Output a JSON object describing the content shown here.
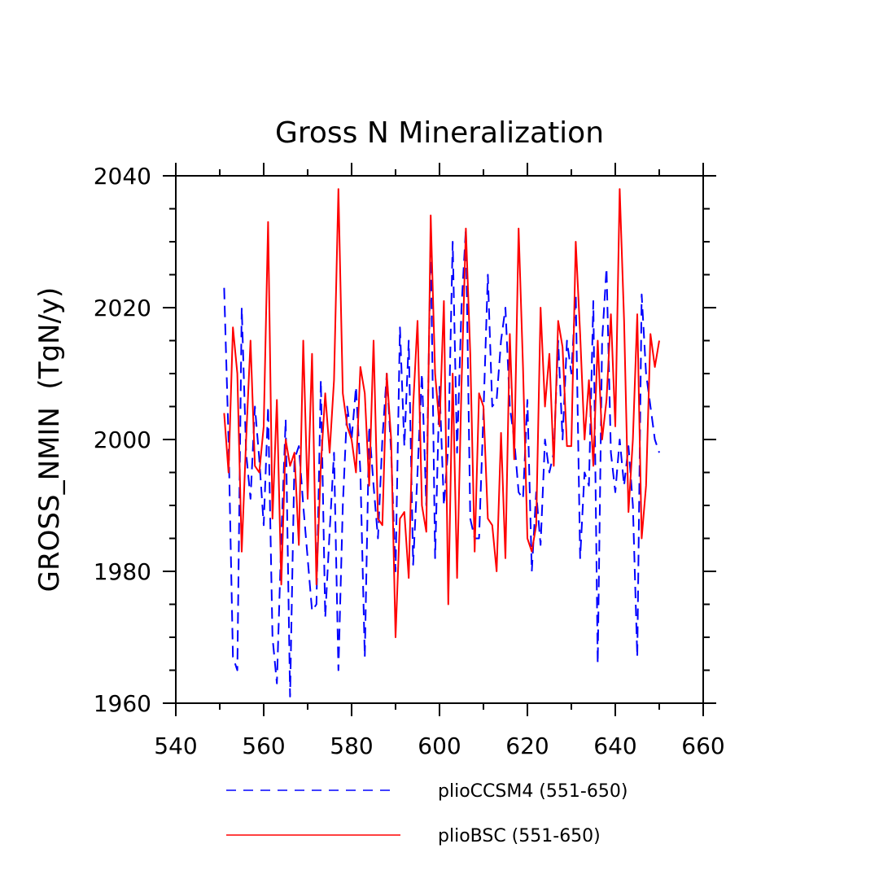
{
  "chart_data": {
    "type": "line",
    "title": "Gross N Mineralization",
    "xlabel": "",
    "ylabel": "GROSS_NMIN  (TgN/y)",
    "xlim": [
      540,
      660
    ],
    "ylim": [
      1960,
      2040
    ],
    "x_ticks": [
      540,
      560,
      580,
      600,
      620,
      640,
      660
    ],
    "y_ticks": [
      1960,
      1980,
      2000,
      2020,
      2040
    ],
    "x_tick_labels": [
      "540",
      "560",
      "580",
      "600",
      "620",
      "640",
      "660"
    ],
    "y_tick_labels": [
      "1960",
      "1980",
      "2000",
      "2020",
      "2040"
    ],
    "grid": false,
    "legend_position": "bottom",
    "series": [
      {
        "name": "plioCCSM4 (551-650)",
        "color": "#0000ff",
        "style": "dashed",
        "x": [
          551,
          552,
          553,
          554,
          555,
          556,
          557,
          558,
          559,
          560,
          561,
          562,
          563,
          564,
          565,
          566,
          567,
          568,
          569,
          570,
          571,
          572,
          573,
          574,
          575,
          576,
          577,
          578,
          579,
          580,
          581,
          582,
          583,
          584,
          585,
          586,
          587,
          588,
          589,
          590,
          591,
          592,
          593,
          594,
          595,
          596,
          597,
          598,
          599,
          600,
          601,
          602,
          603,
          604,
          605,
          606,
          607,
          608,
          609,
          610,
          611,
          612,
          613,
          614,
          615,
          616,
          617,
          618,
          619,
          620,
          621,
          622,
          623,
          624,
          625,
          626,
          627,
          628,
          629,
          630,
          631,
          632,
          633,
          634,
          635,
          636,
          637,
          638,
          639,
          640,
          641,
          642,
          643,
          644,
          645,
          646,
          647,
          648,
          649,
          650
        ],
        "values": [
          2023,
          2000,
          1967,
          1965,
          2020,
          1998,
          1991,
          2005,
          1997,
          1987,
          2005,
          1970,
          1963,
          1985,
          2003,
          1961,
          1997,
          1999,
          1990,
          1982,
          1974,
          1975,
          2009,
          1973,
          1986,
          1998,
          1965,
          1990,
          2005,
          2000,
          2008,
          1995,
          1967,
          2002,
          1993,
          1985,
          2000,
          2010,
          1998,
          1980,
          2017,
          1999,
          2015,
          1981,
          1995,
          2010,
          1990,
          2030,
          1982,
          2008,
          1990,
          1999,
          2030,
          1998,
          2020,
          2032,
          1988,
          1985,
          1985,
          2004,
          2025,
          2005,
          2006,
          2015,
          2020,
          2005,
          2000,
          1992,
          1991,
          2006,
          1980,
          1992,
          1984,
          2000,
          1995,
          1998,
          2015,
          2000,
          2015,
          2010,
          2022,
          1982,
          1995,
          1993,
          2021,
          1966,
          2015,
          2026,
          1998,
          1992,
          2000,
          1993,
          1999,
          1990,
          1967,
          2022,
          2010,
          2005,
          2000,
          1998
        ]
      },
      {
        "name": "plioBSC (551-650)",
        "color": "#ff0000",
        "style": "solid",
        "x": [
          551,
          552,
          553,
          554,
          555,
          556,
          557,
          558,
          559,
          560,
          561,
          562,
          563,
          564,
          565,
          566,
          567,
          568,
          569,
          570,
          571,
          572,
          573,
          574,
          575,
          576,
          577,
          578,
          579,
          580,
          581,
          582,
          583,
          584,
          585,
          586,
          587,
          588,
          589,
          590,
          591,
          592,
          593,
          594,
          595,
          596,
          597,
          598,
          599,
          600,
          601,
          602,
          603,
          604,
          605,
          606,
          607,
          608,
          609,
          610,
          611,
          612,
          613,
          614,
          615,
          616,
          617,
          618,
          619,
          620,
          621,
          622,
          623,
          624,
          625,
          626,
          627,
          628,
          629,
          630,
          631,
          632,
          633,
          634,
          635,
          636,
          637,
          638,
          639,
          640,
          641,
          642,
          643,
          644,
          645,
          646,
          647,
          648,
          649,
          650
        ],
        "values": [
          2004,
          1995,
          2017,
          2010,
          1983,
          2000,
          2015,
          1996,
          1995,
          2002,
          2033,
          1988,
          2006,
          1978,
          2000,
          1996,
          1998,
          1984,
          2015,
          1991,
          2013,
          1978,
          1996,
          2007,
          1998,
          2009,
          2038,
          2007,
          2002,
          2000,
          1995,
          2011,
          2007,
          1993,
          2015,
          1988,
          1987,
          2010,
          2000,
          1970,
          1988,
          1989,
          1979,
          2005,
          2018,
          1990,
          1986,
          2034,
          2010,
          2002,
          2021,
          1975,
          2010,
          1979,
          2008,
          2032,
          2013,
          1983,
          2007,
          2005,
          1988,
          1987,
          1980,
          2001,
          1982,
          2016,
          1997,
          2032,
          2011,
          1985,
          1983,
          1987,
          2020,
          2005,
          2013,
          1996,
          2018,
          2014,
          1999,
          1999,
          2030,
          2016,
          2000,
          2009,
          1996,
          2015,
          2000,
          2006,
          2019,
          2002,
          2038,
          2018,
          1989,
          2000,
          2019,
          1985,
          1993,
          2016,
          2011,
          2015
        ]
      }
    ]
  }
}
